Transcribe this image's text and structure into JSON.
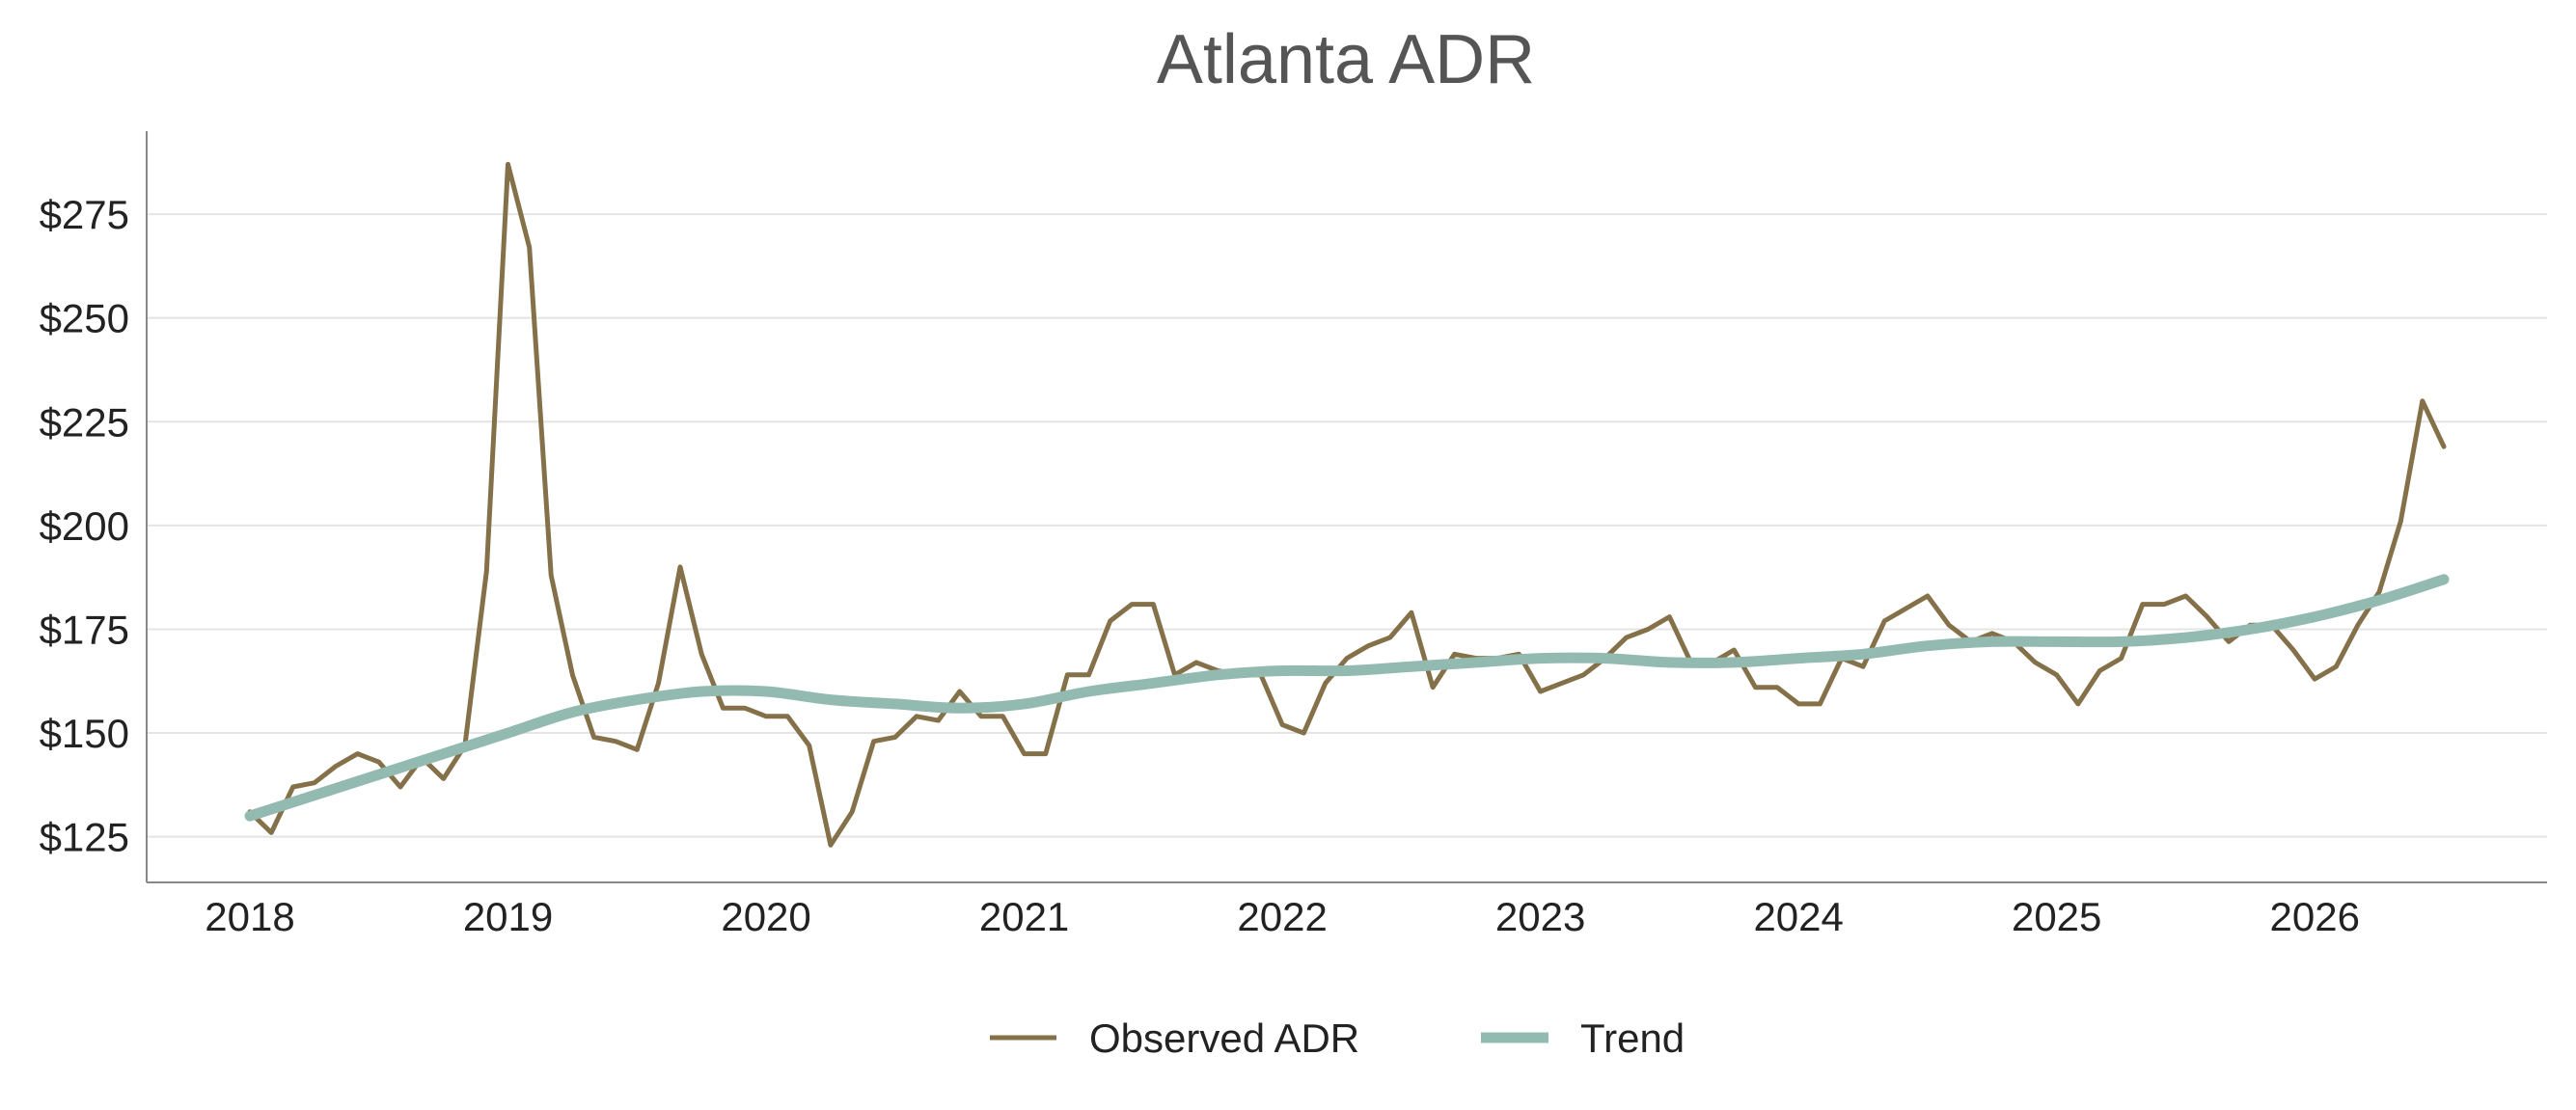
{
  "chart_data": {
    "type": "line",
    "title": "Atlanta ADR",
    "xlabel": "",
    "ylabel": "",
    "x_ticks": [
      "2018",
      "2019",
      "2020",
      "2021",
      "2022",
      "2023",
      "2024",
      "2025",
      "2026"
    ],
    "y_ticks": [
      "$125",
      "$150",
      "$175",
      "$200",
      "$225",
      "$250",
      "$275"
    ],
    "xlim": [
      2017.6,
      2026.9
    ],
    "ylim": [
      114,
      295
    ],
    "grid": "horizontal",
    "legend_position": "bottom-center",
    "colors": {
      "observed": "#857149",
      "trend": "#92bab1"
    },
    "series": [
      {
        "name": "Observed ADR",
        "x": [
          2018.0,
          2018.083,
          2018.167,
          2018.25,
          2018.333,
          2018.417,
          2018.5,
          2018.583,
          2018.667,
          2018.75,
          2018.833,
          2018.917,
          2019.0,
          2019.083,
          2019.167,
          2019.25,
          2019.333,
          2019.417,
          2019.5,
          2019.583,
          2019.667,
          2019.75,
          2019.833,
          2019.917,
          2020.0,
          2020.083,
          2020.167,
          2020.25,
          2020.333,
          2020.417,
          2020.5,
          2020.583,
          2020.667,
          2020.75,
          2020.833,
          2020.917,
          2021.0,
          2021.083,
          2021.167,
          2021.25,
          2021.333,
          2021.417,
          2021.5,
          2021.583,
          2021.667,
          2021.75,
          2021.833,
          2021.917,
          2022.0,
          2022.083,
          2022.167,
          2022.25,
          2022.333,
          2022.417,
          2022.5,
          2022.583,
          2022.667,
          2022.75,
          2022.833,
          2022.917,
          2023.0,
          2023.083,
          2023.167,
          2023.25,
          2023.333,
          2023.417,
          2023.5,
          2023.583,
          2023.667,
          2023.75,
          2023.833,
          2023.917,
          2024.0,
          2024.083,
          2024.167,
          2024.25,
          2024.333,
          2024.417,
          2024.5,
          2024.583,
          2024.667,
          2024.75,
          2024.833,
          2024.917,
          2025.0,
          2025.083,
          2025.167,
          2025.25,
          2025.333,
          2025.417,
          2025.5,
          2025.583,
          2025.667,
          2025.75,
          2025.833,
          2025.917,
          2026.0,
          2026.083,
          2026.167,
          2026.25,
          2026.333,
          2026.417,
          2026.5
        ],
        "values": [
          131,
          126,
          137,
          138,
          142,
          145,
          143,
          137,
          144,
          139,
          147,
          189,
          287,
          267,
          188,
          164,
          149,
          148,
          146,
          162,
          190,
          169,
          156,
          156,
          154,
          154,
          147,
          123,
          131,
          148,
          149,
          154,
          153,
          160,
          154,
          154,
          145,
          145,
          164,
          164,
          177,
          181,
          181,
          164,
          167,
          165,
          164,
          164,
          152,
          150,
          162,
          168,
          171,
          173,
          179,
          161,
          169,
          168,
          168,
          169,
          160,
          162,
          164,
          168,
          173,
          175,
          178,
          167,
          167,
          170,
          161,
          161,
          157,
          157,
          168,
          166,
          177,
          180,
          183,
          176,
          172,
          174,
          172,
          167,
          164,
          157,
          165,
          168,
          181,
          181,
          183,
          178,
          172,
          176,
          176,
          170,
          163,
          166,
          176,
          184,
          201,
          230,
          219
        ]
      },
      {
        "name": "Trend",
        "x": [
          2018.0,
          2018.25,
          2018.5,
          2018.75,
          2019.0,
          2019.25,
          2019.5,
          2019.75,
          2020.0,
          2020.25,
          2020.5,
          2020.75,
          2021.0,
          2021.25,
          2021.5,
          2021.75,
          2022.0,
          2022.25,
          2022.5,
          2022.75,
          2023.0,
          2023.25,
          2023.5,
          2023.75,
          2024.0,
          2024.25,
          2024.5,
          2024.75,
          2025.0,
          2025.25,
          2025.5,
          2025.75,
          2026.0,
          2026.25,
          2026.5
        ],
        "values": [
          130,
          135,
          140,
          145,
          150,
          155,
          158,
          160,
          160,
          158,
          157,
          156,
          157,
          160,
          162,
          164,
          165,
          165,
          166,
          167,
          168,
          168,
          167,
          167,
          168,
          169,
          171,
          172,
          172,
          172,
          173,
          175,
          178,
          182,
          187
        ]
      }
    ]
  }
}
